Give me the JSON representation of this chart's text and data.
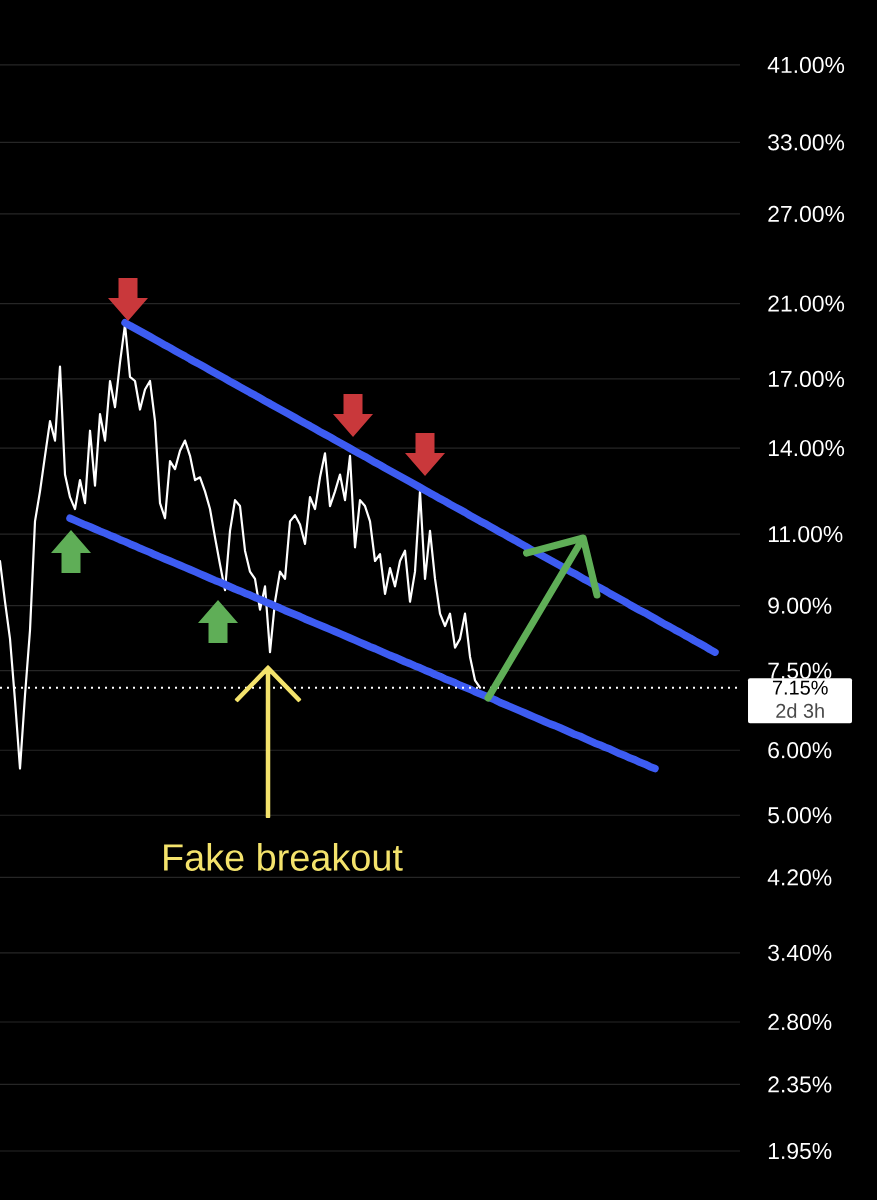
{
  "chart_data": {
    "type": "line",
    "categories": [
      null,
      null,
      null,
      null,
      null,
      null,
      null,
      null,
      null,
      null,
      null,
      null,
      null,
      null,
      null,
      null,
      null,
      null,
      null,
      null,
      null,
      null,
      null,
      null,
      null,
      null,
      null,
      null,
      null,
      null,
      null,
      null,
      null,
      null,
      null,
      null,
      null,
      null,
      null,
      null,
      null,
      null,
      null,
      null,
      null,
      null,
      null,
      null,
      null,
      null,
      null,
      null,
      null,
      null,
      null,
      null,
      null,
      null,
      null,
      null,
      null,
      null,
      null,
      null,
      null,
      null,
      null,
      null,
      null,
      null,
      null,
      null,
      null,
      null,
      null,
      null,
      null,
      null,
      null,
      null,
      null,
      null,
      null,
      null,
      null,
      null,
      null,
      null,
      null,
      null,
      null,
      null,
      null,
      null,
      null,
      null,
      null,
      null,
      null,
      null,
      null,
      null,
      null,
      null,
      null,
      null,
      null,
      null,
      null,
      null,
      null,
      null,
      null,
      null,
      null,
      null,
      null,
      null,
      null,
      null,
      null,
      null,
      null,
      null,
      null,
      null,
      null,
      null,
      null,
      null,
      null,
      null,
      null,
      null,
      null,
      null,
      null,
      null,
      null,
      null,
      null,
      null,
      null,
      null
    ],
    "series": [
      {
        "color": "#ffffff",
        "values": [
          10.2,
          9.1,
          8.2,
          6.9,
          5.7,
          7.0,
          8.4,
          11.4,
          12.4,
          13.7,
          15.1,
          14.3,
          17.6,
          13.0,
          12.2,
          11.8,
          12.8,
          12.0,
          14.7,
          12.6,
          15.4,
          14.3,
          16.9,
          15.7,
          17.8,
          19.8,
          17.1,
          16.9,
          15.6,
          16.5,
          16.9,
          15.1,
          12.0,
          11.5,
          13.5,
          13.2,
          13.9,
          14.3,
          13.7,
          12.8,
          12.9,
          12.4,
          11.8,
          10.9,
          10.1,
          9.4,
          11.1,
          12.1,
          11.9,
          10.5,
          9.9,
          9.7,
          8.9,
          9.5,
          7.9,
          9.1,
          9.9,
          9.7,
          11.4,
          11.6,
          11.3,
          10.7,
          12.2,
          11.8,
          12.9,
          13.8,
          11.9,
          12.4,
          13.0,
          12.1,
          13.7,
          10.6,
          12.1,
          11.9,
          11.4,
          10.2,
          10.4,
          9.3,
          10.0,
          9.5,
          10.2,
          10.5,
          9.1,
          9.9,
          12.4,
          9.7,
          11.1,
          9.7,
          8.8,
          8.5,
          8.8,
          8.0,
          8.2,
          8.8,
          7.8,
          7.3,
          7.15,
          null,
          null,
          null,
          null,
          null,
          null,
          null,
          null,
          null,
          null,
          null,
          null,
          null,
          null,
          null,
          null,
          null,
          null,
          null,
          null,
          null,
          null,
          null,
          null,
          null,
          null,
          null,
          null,
          null,
          null,
          null,
          null,
          null,
          null,
          null,
          null,
          null,
          null,
          null,
          null,
          null,
          null,
          null,
          null,
          null,
          null,
          null
        ]
      },
      {
        "color": "#3d5cf2",
        "values": [
          null,
          null,
          null,
          null,
          null,
          null,
          null,
          null,
          null,
          null,
          null,
          null,
          null,
          null,
          null,
          null,
          null,
          null,
          null,
          null,
          null,
          null,
          null,
          null,
          null,
          19.9,
          19.74,
          19.59,
          19.44,
          19.29,
          19.14,
          18.99,
          18.84,
          18.69,
          18.55,
          18.4,
          18.26,
          18.12,
          17.97,
          17.83,
          17.7,
          17.56,
          17.42,
          17.28,
          17.15,
          17.02,
          16.88,
          16.75,
          16.62,
          16.49,
          16.36,
          16.24,
          16.11,
          15.98,
          15.86,
          15.73,
          15.61,
          15.49,
          15.37,
          15.25,
          15.13,
          15.01,
          14.9,
          14.78,
          14.66,
          14.55,
          14.44,
          14.32,
          14.21,
          14.1,
          13.99,
          13.88,
          13.77,
          13.67,
          13.56,
          13.45,
          13.35,
          13.24,
          13.14,
          13.04,
          12.94,
          12.84,
          12.74,
          12.64,
          12.54,
          12.44,
          12.34,
          12.25,
          12.15,
          12.06,
          11.96,
          11.87,
          11.78,
          11.69,
          11.59,
          11.5,
          11.41,
          11.33,
          11.24,
          11.15,
          11.06,
          10.98,
          10.89,
          10.81,
          10.72,
          10.64,
          10.55,
          10.47,
          10.39,
          10.31,
          10.23,
          10.15,
          10.07,
          9.99,
          9.91,
          9.84,
          9.76,
          9.68,
          9.61,
          9.53,
          9.46,
          9.39,
          9.31,
          9.24,
          9.17,
          9.1,
          9.02,
          8.95,
          8.88,
          8.82,
          8.75,
          8.68,
          8.61,
          8.54,
          8.48,
          8.41,
          8.35,
          8.28,
          8.22,
          8.15,
          8.09,
          8.03,
          7.96,
          7.9
        ]
      },
      {
        "color": "#3d5cf2",
        "values": [
          null,
          null,
          null,
          null,
          null,
          null,
          null,
          null,
          null,
          null,
          null,
          null,
          null,
          null,
          11.5,
          11.43,
          11.36,
          11.29,
          11.23,
          11.16,
          11.09,
          11.03,
          10.96,
          10.9,
          10.83,
          10.77,
          10.7,
          10.64,
          10.57,
          10.51,
          10.45,
          10.38,
          10.32,
          10.26,
          10.2,
          10.14,
          10.08,
          10.02,
          9.96,
          9.9,
          9.84,
          9.78,
          9.72,
          9.66,
          9.61,
          9.55,
          9.49,
          9.43,
          9.38,
          9.32,
          9.27,
          9.21,
          9.16,
          9.1,
          9.05,
          8.99,
          8.94,
          8.88,
          8.83,
          8.78,
          8.73,
          8.67,
          8.62,
          8.57,
          8.52,
          8.47,
          8.42,
          8.37,
          8.32,
          8.27,
          8.22,
          8.17,
          8.12,
          8.07,
          8.02,
          7.98,
          7.93,
          7.88,
          7.83,
          7.79,
          7.74,
          7.69,
          7.65,
          7.6,
          7.56,
          7.51,
          7.47,
          7.42,
          7.38,
          7.33,
          7.29,
          7.25,
          7.2,
          7.16,
          7.12,
          7.07,
          7.03,
          6.99,
          6.95,
          6.91,
          6.86,
          6.82,
          6.78,
          6.74,
          6.7,
          6.66,
          6.62,
          6.58,
          6.54,
          6.5,
          6.46,
          6.43,
          6.39,
          6.35,
          6.31,
          6.27,
          6.24,
          6.2,
          6.16,
          6.12,
          6.09,
          6.05,
          6.02,
          5.98,
          5.94,
          5.91,
          5.87,
          5.84,
          5.8,
          5.77,
          5.73,
          5.7,
          null,
          null,
          null,
          null,
          null,
          null,
          null,
          null,
          null,
          null,
          null,
          null
        ]
      }
    ],
    "log": true,
    "ylim": [
      1.95,
      41
    ],
    "yticks": [
      {
        "value": 41,
        "label": "41.00%"
      },
      {
        "value": 33,
        "label": "33.00%"
      },
      {
        "value": 27,
        "label": "27.00%"
      },
      {
        "value": 21,
        "label": "21.00%"
      },
      {
        "value": 17,
        "label": "17.00%"
      },
      {
        "value": 14,
        "label": "14.00%"
      },
      {
        "value": 11,
        "label": "11.00%"
      },
      {
        "value": 9,
        "label": "9.00%"
      },
      {
        "value": 7.5,
        "label": "7.50%"
      },
      {
        "value": 6,
        "label": "6.00%"
      },
      {
        "value": 5,
        "label": "5.00%"
      },
      {
        "value": 4.2,
        "label": "4.20%"
      },
      {
        "value": 3.4,
        "label": "3.40%"
      },
      {
        "value": 2.8,
        "label": "2.80%"
      },
      {
        "value": 2.35,
        "label": "2.35%"
      },
      {
        "value": 1.95,
        "label": "1.95%"
      }
    ],
    "grid": "y",
    "ref_lines": [
      {
        "axis": "y",
        "value": 7.15,
        "label": "7.15%",
        "color": "#ffffff",
        "line_style": "dotted"
      }
    ],
    "annotations": [
      "Fake breakout",
      "2d 3h"
    ]
  }
}
